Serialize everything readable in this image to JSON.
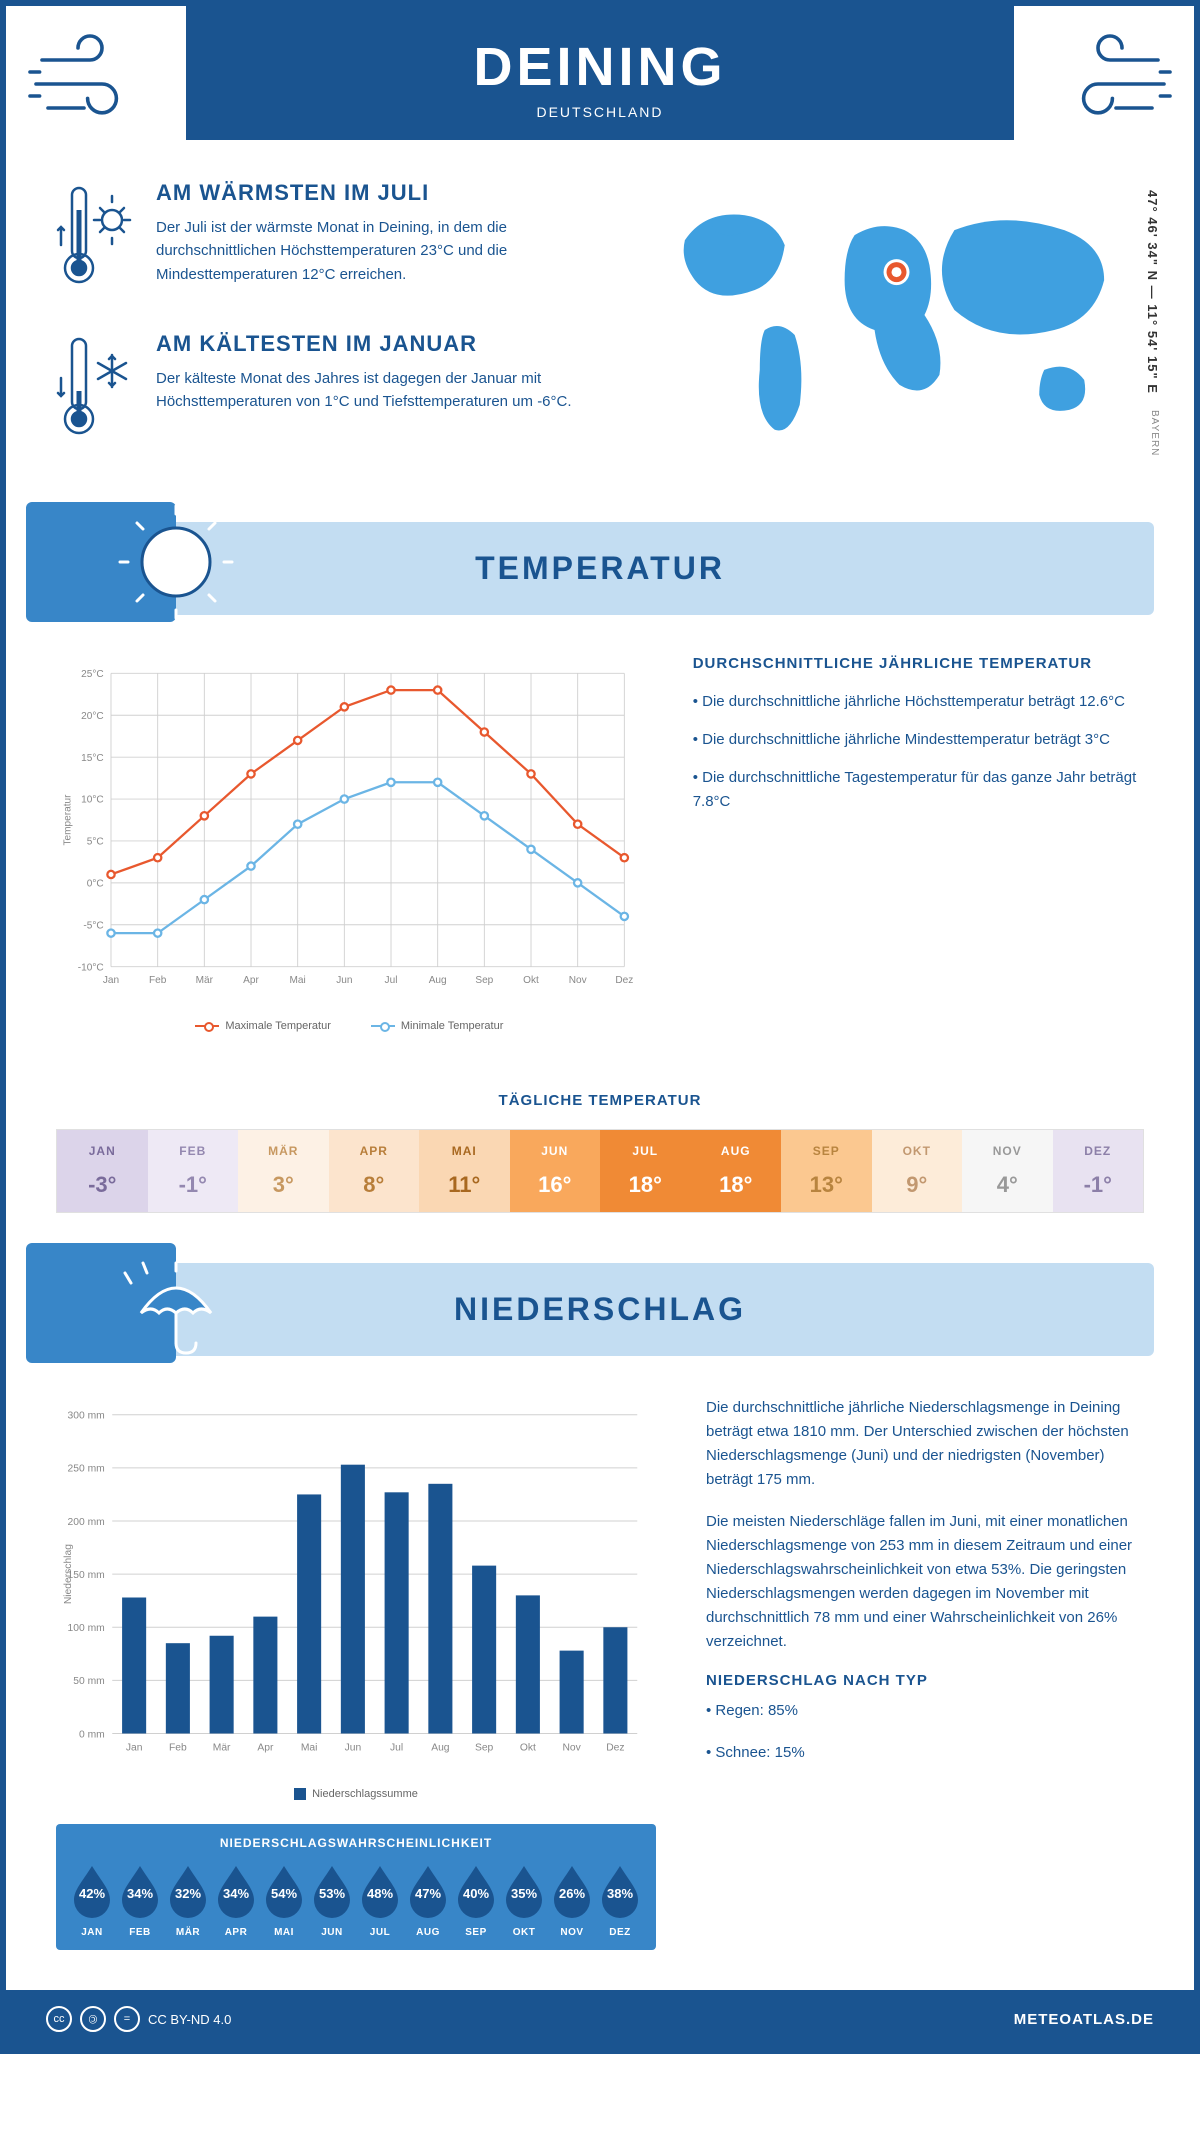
{
  "header": {
    "city": "DEINING",
    "country": "DEUTSCHLAND"
  },
  "coords": "47° 46' 34\" N — 11° 54' 15\" E",
  "region": "BAYERN",
  "facts": {
    "warm": {
      "title": "AM WÄRMSTEN IM JULI",
      "text": "Der Juli ist der wärmste Monat in Deining, in dem die durchschnittlichen Höchsttemperaturen 23°C und die Mindesttemperaturen 12°C erreichen."
    },
    "cold": {
      "title": "AM KÄLTESTEN IM JANUAR",
      "text": "Der kälteste Monat des Jahres ist dagegen der Januar mit Höchsttemperaturen von 1°C und Tiefsttemperaturen um -6°C."
    }
  },
  "sections": {
    "temp": "TEMPERATUR",
    "precip": "NIEDERSCHLAG"
  },
  "temp_chart": {
    "months": [
      "Jan",
      "Feb",
      "Mär",
      "Apr",
      "Mai",
      "Jun",
      "Jul",
      "Aug",
      "Sep",
      "Okt",
      "Nov",
      "Dez"
    ],
    "max": [
      1,
      3,
      8,
      13,
      17,
      21,
      23,
      23,
      18,
      13,
      7,
      3
    ],
    "min": [
      -6,
      -6,
      -2,
      2,
      7,
      10,
      12,
      12,
      8,
      4,
      0,
      -4
    ],
    "ylim": [
      -10,
      25
    ],
    "ytick_step": 5,
    "ylabel": "Temperatur",
    "max_color": "#e8582e",
    "min_color": "#6bb5e5",
    "grid_color": "#d0d0d0",
    "background": "#ffffff",
    "legend_max": "Maximale Temperatur",
    "legend_min": "Minimale Temperatur"
  },
  "temp_text": {
    "title": "DURCHSCHNITTLICHE JÄHRLICHE TEMPERATUR",
    "b1": "• Die durchschnittliche jährliche Höchsttemperatur beträgt 12.6°C",
    "b2": "• Die durchschnittliche jährliche Mindesttemperatur beträgt 3°C",
    "b3": "• Die durchschnittliche Tagestemperatur für das ganze Jahr beträgt 7.8°C"
  },
  "daily": {
    "title": "TÄGLICHE TEMPERATUR",
    "months": [
      "JAN",
      "FEB",
      "MÄR",
      "APR",
      "MAI",
      "JUN",
      "JUL",
      "AUG",
      "SEP",
      "OKT",
      "NOV",
      "DEZ"
    ],
    "values": [
      "-3°",
      "-1°",
      "3°",
      "8°",
      "11°",
      "16°",
      "18°",
      "18°",
      "13°",
      "9°",
      "4°",
      "-1°"
    ],
    "bg": [
      "#dcd4ea",
      "#eee9f5",
      "#fdf1e5",
      "#fce4cd",
      "#fad7b3",
      "#f9a85c",
      "#f08a35",
      "#f08a35",
      "#fbc890",
      "#fdecd9",
      "#f6f6f6",
      "#e8e2f1"
    ],
    "fg": [
      "#7a6b9b",
      "#9488b0",
      "#c79860",
      "#b87e3a",
      "#a86820",
      "#fff",
      "#fff",
      "#fff",
      "#b8843f",
      "#c29870",
      "#999",
      "#8c7fa8"
    ]
  },
  "precip_chart": {
    "months": [
      "Jan",
      "Feb",
      "Mär",
      "Apr",
      "Mai",
      "Jun",
      "Jul",
      "Aug",
      "Sep",
      "Okt",
      "Nov",
      "Dez"
    ],
    "values": [
      128,
      85,
      92,
      110,
      225,
      253,
      227,
      235,
      158,
      130,
      78,
      100
    ],
    "ylim": [
      0,
      300
    ],
    "ytick_step": 50,
    "ylabel": "Niederschlag",
    "bar_color": "#1a5490",
    "grid_color": "#d0d0d0",
    "legend": "Niederschlagssumme"
  },
  "precip_text": {
    "p1": "Die durchschnittliche jährliche Niederschlagsmenge in Deining beträgt etwa 1810 mm. Der Unterschied zwischen der höchsten Niederschlagsmenge (Juni) und der niedrigsten (November) beträgt 175 mm.",
    "p2": "Die meisten Niederschläge fallen im Juni, mit einer monatlichen Niederschlagsmenge von 253 mm in diesem Zeitraum und einer Niederschlagswahrscheinlichkeit von etwa 53%. Die geringsten Niederschlagsmengen werden dagegen im November mit durchschnittlich 78 mm und einer Wahrscheinlichkeit von 26% verzeichnet.",
    "type_title": "NIEDERSCHLAG NACH TYP",
    "type1": "• Regen: 85%",
    "type2": "• Schnee: 15%"
  },
  "prob": {
    "title": "NIEDERSCHLAGSWAHRSCHEINLICHKEIT",
    "months": [
      "JAN",
      "FEB",
      "MÄR",
      "APR",
      "MAI",
      "JUN",
      "JUL",
      "AUG",
      "SEP",
      "OKT",
      "NOV",
      "DEZ"
    ],
    "values": [
      "42%",
      "34%",
      "32%",
      "34%",
      "54%",
      "53%",
      "48%",
      "47%",
      "40%",
      "35%",
      "26%",
      "38%"
    ],
    "drop_color": "#1a5490"
  },
  "footer": {
    "license": "CC BY-ND 4.0",
    "site": "METEOATLAS.DE"
  },
  "colors": {
    "primary": "#1a5490",
    "banner": "#c3ddf2",
    "banner_icon": "#3886c8"
  }
}
